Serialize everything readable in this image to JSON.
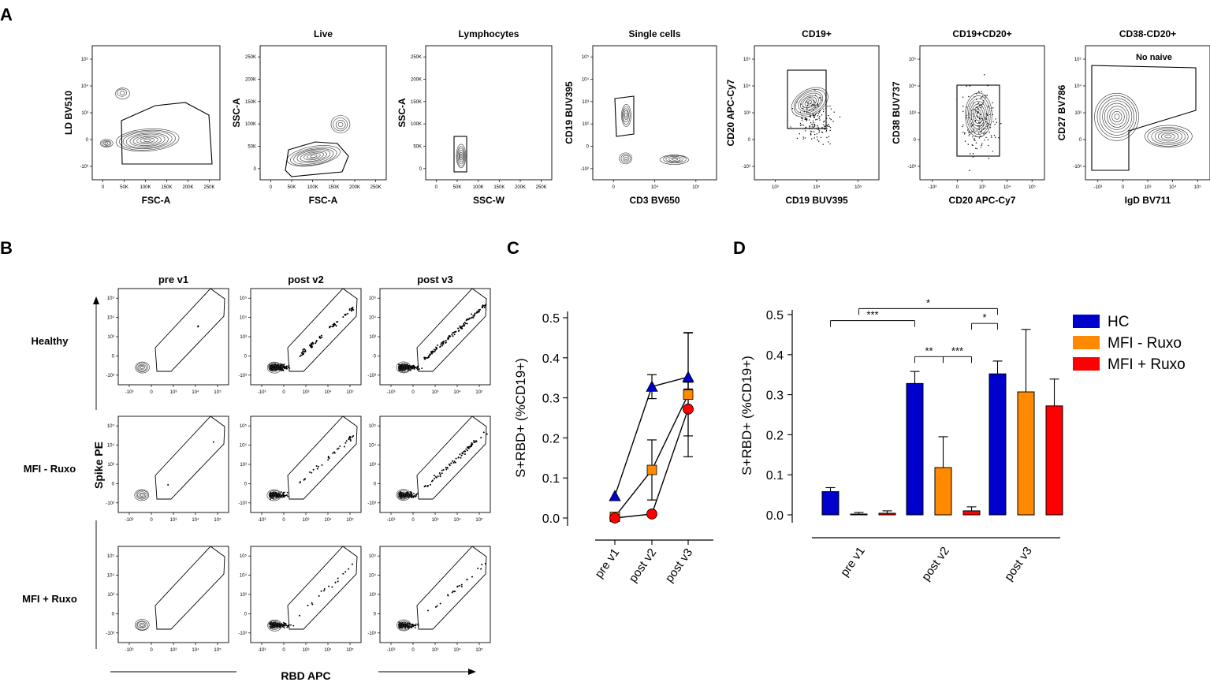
{
  "panel_labels": [
    "A",
    "B",
    "C",
    "D"
  ],
  "colors": {
    "hc": "#0000cc",
    "mfi_minus_ruxo": "#ff8a00",
    "mfi_plus_ruxo": "#ff0000",
    "ink": "#000000",
    "contour": "#333333"
  },
  "panel_a": {
    "plots": [
      {
        "title": "",
        "xlabel": "FSC-A",
        "ylabel": "LD BV510",
        "xticks": [
          "0",
          "50K",
          "100K",
          "150K",
          "200K",
          "250K"
        ],
        "yticks": [
          "10⁵",
          "10⁴",
          "10³",
          "0",
          "-10³"
        ],
        "gate_label": ""
      },
      {
        "title": "Live",
        "xlabel": "FSC-A",
        "ylabel": "SSC-A",
        "xticks": [
          "0",
          "50K",
          "100K",
          "150K",
          "200K",
          "250K"
        ],
        "yticks": [
          "250K",
          "200K",
          "150K",
          "100K",
          "50K",
          "0"
        ],
        "gate_label": ""
      },
      {
        "title": "Lymphocytes",
        "xlabel": "SSC-W",
        "ylabel": "SSC-A",
        "xticks": [
          "0",
          "50K",
          "100K",
          "150K",
          "200K",
          "250K"
        ],
        "yticks": [
          "250K",
          "200K",
          "150K",
          "100K",
          "50K",
          "0"
        ],
        "gate_label": ""
      },
      {
        "title": "Single cells",
        "xlabel": "CD3 BV650",
        "ylabel": "CD19 BUV395",
        "xticks": [
          "0",
          "10⁴",
          "10⁵"
        ],
        "yticks": [
          "10⁵",
          "10⁴",
          "10³",
          "10²",
          "0",
          "-10²"
        ],
        "gate_label": ""
      },
      {
        "title": "CD19+",
        "xlabel": "CD19 BUV395",
        "ylabel": "CD20 APC-Cy7",
        "xticks": [
          "10³",
          "10⁴",
          "10⁵"
        ],
        "yticks": [
          "10⁵",
          "10⁴",
          "10³",
          "0",
          "-10³"
        ],
        "gate_label": ""
      },
      {
        "title": "CD19+CD20+",
        "xlabel": "CD20 APC-Cy7",
        "ylabel": "CD38 BUV737",
        "xticks": [
          "-10³",
          "0",
          "10³",
          "10⁴",
          "10⁵"
        ],
        "yticks": [
          "10⁵",
          "10⁴",
          "10³",
          "0",
          "-10³"
        ],
        "gate_label": ""
      },
      {
        "title": "CD38-CD20+",
        "xlabel": "IgD BV711",
        "ylabel": "CD27 BV786",
        "xticks": [
          "-10³",
          "0",
          "10³",
          "10⁴",
          "10⁵"
        ],
        "yticks": [
          "10⁵",
          "10⁴",
          "10³",
          "0",
          "-10³"
        ],
        "gate_label": "No naive"
      }
    ]
  },
  "panel_b": {
    "col_titles": [
      "pre v1",
      "post v2",
      "post v3"
    ],
    "row_titles": [
      "Healthy",
      "MFI - Ruxo",
      "MFI + Ruxo"
    ],
    "xlabel": "RBD APC",
    "ylabel": "Spike PE",
    "xticks": [
      "-10³",
      "0",
      "10³",
      "10⁴",
      "10⁵"
    ],
    "yticks": [
      "10⁵",
      "10⁴",
      "10³",
      "0",
      "-10³"
    ]
  },
  "chart_data": [
    {
      "id": "C",
      "type": "line",
      "title": "",
      "xlabel": "",
      "ylabel": "S+RBD+ (%CD19+)",
      "categories": [
        "pre v1",
        "post v2",
        "post v3"
      ],
      "ylim": [
        0,
        0.5
      ],
      "yticks": [
        "0.0",
        "0.1",
        "0.2",
        "0.3",
        "0.4",
        "0.5"
      ],
      "series": [
        {
          "name": "HC",
          "marker": "triangle",
          "values": [
            0.055,
            0.328,
            0.352
          ],
          "err_hi": [
            0.0,
            0.03,
            0.11
          ],
          "err_lo": [
            0.0,
            0.03,
            0.03
          ]
        },
        {
          "name": "MFI - Ruxo",
          "marker": "square",
          "values": [
            0.003,
            0.12,
            0.308
          ],
          "err_hi": [
            0.0,
            0.075,
            0.155
          ],
          "err_lo": [
            0.0,
            0.075,
            0.155
          ]
        },
        {
          "name": "MFI + Ruxo",
          "marker": "circle",
          "values": [
            0.0,
            0.01,
            0.272
          ],
          "err_hi": [
            0.0,
            0.0,
            0.067
          ],
          "err_lo": [
            0.0,
            0.0,
            0.067
          ]
        }
      ]
    },
    {
      "id": "D",
      "type": "bar",
      "title": "",
      "xlabel": "",
      "ylabel": "S+RBD+ (%CD19+)",
      "categories": [
        "pre v1",
        "post v2",
        "post v3"
      ],
      "ylim": [
        0,
        0.5
      ],
      "yticks": [
        "0.0",
        "0.1",
        "0.2",
        "0.3",
        "0.4",
        "0.5"
      ],
      "series": [
        {
          "name": "HC",
          "values": [
            0.058,
            0.328,
            0.352
          ],
          "err_hi": [
            0.01,
            0.03,
            0.032
          ]
        },
        {
          "name": "MFI - Ruxo",
          "values": [
            0.002,
            0.118,
            0.307
          ],
          "err_hi": [
            0.004,
            0.077,
            0.156
          ]
        },
        {
          "name": "MFI + Ruxo",
          "values": [
            0.004,
            0.01,
            0.272
          ],
          "err_hi": [
            0.006,
            0.01,
            0.067
          ]
        }
      ],
      "legend": [
        "HC",
        "MFI - Ruxo",
        "MFI + Ruxo"
      ],
      "significance": [
        {
          "from": [
            0,
            0
          ],
          "to": [
            1,
            0
          ],
          "label": "***",
          "level": 0.485
        },
        {
          "from": [
            0,
            1
          ],
          "to": [
            2,
            0
          ],
          "label": "*",
          "level": 0.515
        },
        {
          "from": [
            1,
            0
          ],
          "to": [
            1,
            1
          ],
          "label": "**",
          "level": 0.395
        },
        {
          "from": [
            1,
            1
          ],
          "to": [
            1,
            2
          ],
          "label": "***",
          "level": 0.395
        },
        {
          "from": [
            1,
            2
          ],
          "to": [
            2,
            0
          ],
          "label": "*",
          "level": 0.478
        }
      ]
    }
  ]
}
